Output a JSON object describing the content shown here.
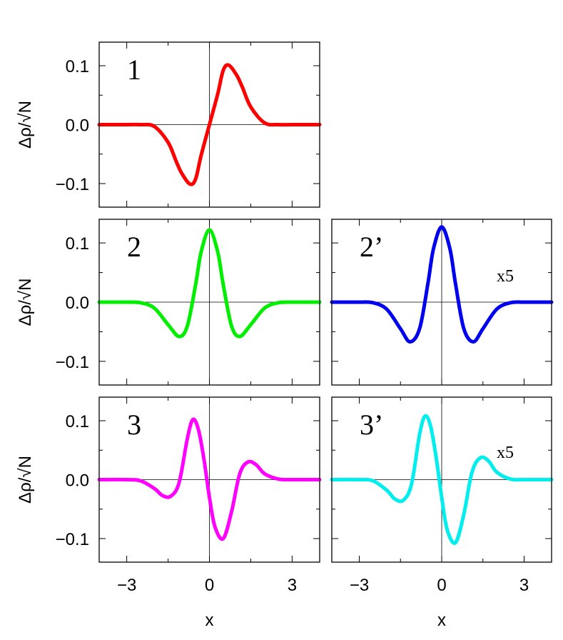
{
  "chart_data": [
    {
      "type": "line",
      "panel": "1",
      "label": "1",
      "scale_label": "",
      "ylabel": "Δρ/√N",
      "xlabel": "",
      "xlim": [
        -4,
        4
      ],
      "ylim": [
        -0.14,
        0.14
      ],
      "xticks": [
        -3,
        0,
        3
      ],
      "yticks": [
        -0.1,
        0.0,
        0.1
      ],
      "xtick_labels": [],
      "ytick_labels": [
        "−0.1",
        "0.0",
        "0.1"
      ],
      "color": "#ff0000",
      "x": [
        -4,
        -3.5,
        -3,
        -2.5,
        -2,
        -1.5,
        -1.2,
        -1,
        -0.7,
        -0.5,
        -0.3,
        0,
        0.3,
        0.5,
        0.7,
        1,
        1.2,
        1.5,
        2,
        2.5,
        3,
        3.5,
        4
      ],
      "y": [
        0,
        0,
        0,
        0,
        -0.003,
        -0.03,
        -0.063,
        -0.083,
        -0.101,
        -0.092,
        -0.052,
        0,
        0.052,
        0.092,
        0.101,
        0.083,
        0.063,
        0.03,
        0.003,
        0,
        0,
        0,
        0
      ]
    },
    {
      "type": "line",
      "panel": "2",
      "label": "2",
      "scale_label": "",
      "ylabel": "Δρ/√N",
      "xlabel": "",
      "xlim": [
        -4,
        4
      ],
      "ylim": [
        -0.14,
        0.14
      ],
      "xticks": [
        -3,
        0,
        3
      ],
      "yticks": [
        -0.1,
        0.0,
        0.1
      ],
      "xtick_labels": [],
      "ytick_labels": [
        "−0.1",
        "0.0",
        "0.1"
      ],
      "color": "#00ee00",
      "x": [
        -4,
        -3,
        -2.5,
        -2,
        -1.5,
        -1.1,
        -0.8,
        -0.5,
        -0.3,
        0,
        0.3,
        0.5,
        0.8,
        1.1,
        1.5,
        2,
        2.5,
        3,
        4
      ],
      "y": [
        0,
        0,
        -0.001,
        -0.01,
        -0.038,
        -0.058,
        -0.04,
        0.03,
        0.085,
        0.122,
        0.085,
        0.03,
        -0.04,
        -0.058,
        -0.038,
        -0.01,
        -0.001,
        0,
        0
      ]
    },
    {
      "type": "line",
      "panel": "2'",
      "label": "2’",
      "scale_label": "x5",
      "ylabel": "",
      "xlabel": "",
      "xlim": [
        -4,
        4
      ],
      "ylim": [
        -0.14,
        0.14
      ],
      "xticks": [
        -3,
        0,
        3
      ],
      "yticks": [
        -0.1,
        0.0,
        0.1
      ],
      "xtick_labels": [],
      "ytick_labels": [],
      "color": "#0000ee",
      "x": [
        -4,
        -3,
        -2.5,
        -2,
        -1.5,
        -1.15,
        -0.8,
        -0.5,
        -0.3,
        0,
        0.3,
        0.5,
        0.8,
        1.15,
        1.5,
        2,
        2.5,
        3,
        4
      ],
      "y": [
        0,
        0,
        -0.001,
        -0.012,
        -0.045,
        -0.067,
        -0.044,
        0.032,
        0.09,
        0.127,
        0.09,
        0.032,
        -0.044,
        -0.067,
        -0.045,
        -0.012,
        -0.001,
        0,
        0
      ]
    },
    {
      "type": "line",
      "panel": "3",
      "label": "3",
      "scale_label": "",
      "ylabel": "Δρ/√N",
      "xlabel": "x",
      "xlim": [
        -4,
        4
      ],
      "ylim": [
        -0.14,
        0.14
      ],
      "xticks": [
        -3,
        0,
        3
      ],
      "yticks": [
        -0.1,
        0.0,
        0.1
      ],
      "xtick_labels": [
        "−3",
        "0",
        "3"
      ],
      "ytick_labels": [
        "−0.1",
        "0.0",
        "0.1"
      ],
      "color": "#ff00ff",
      "x": [
        -4,
        -3,
        -2.5,
        -2,
        -1.7,
        -1.4,
        -1.1,
        -0.8,
        -0.6,
        -0.4,
        -0.2,
        0,
        0.2,
        0.5,
        0.8,
        1.1,
        1.4,
        1.7,
        2,
        2.5,
        3,
        4
      ],
      "y": [
        0,
        0,
        -0.002,
        -0.015,
        -0.027,
        -0.028,
        -0.005,
        0.07,
        0.102,
        0.085,
        0.035,
        -0.03,
        -0.08,
        -0.1,
        -0.055,
        0.01,
        0.03,
        0.025,
        0.01,
        0.001,
        0,
        0
      ]
    },
    {
      "type": "line",
      "panel": "3'",
      "label": "3’",
      "scale_label": "x5",
      "ylabel": "",
      "xlabel": "x",
      "xlim": [
        -4,
        4
      ],
      "ylim": [
        -0.14,
        0.14
      ],
      "xticks": [
        -3,
        0,
        3
      ],
      "yticks": [
        -0.1,
        0.0,
        0.1
      ],
      "xtick_labels": [
        "−3",
        "0",
        "3"
      ],
      "ytick_labels": [],
      "color": "#00eeee",
      "x": [
        -4,
        -3,
        -2.5,
        -2,
        -1.7,
        -1.4,
        -1.1,
        -0.8,
        -0.6,
        -0.4,
        -0.2,
        0,
        0.2,
        0.5,
        0.8,
        1.1,
        1.4,
        1.7,
        2,
        2.5,
        3,
        4
      ],
      "y": [
        0,
        0,
        -0.002,
        -0.018,
        -0.033,
        -0.035,
        -0.008,
        0.078,
        0.108,
        0.09,
        0.037,
        -0.03,
        -0.085,
        -0.107,
        -0.06,
        0.012,
        0.037,
        0.032,
        0.013,
        0.001,
        0,
        0
      ]
    }
  ]
}
